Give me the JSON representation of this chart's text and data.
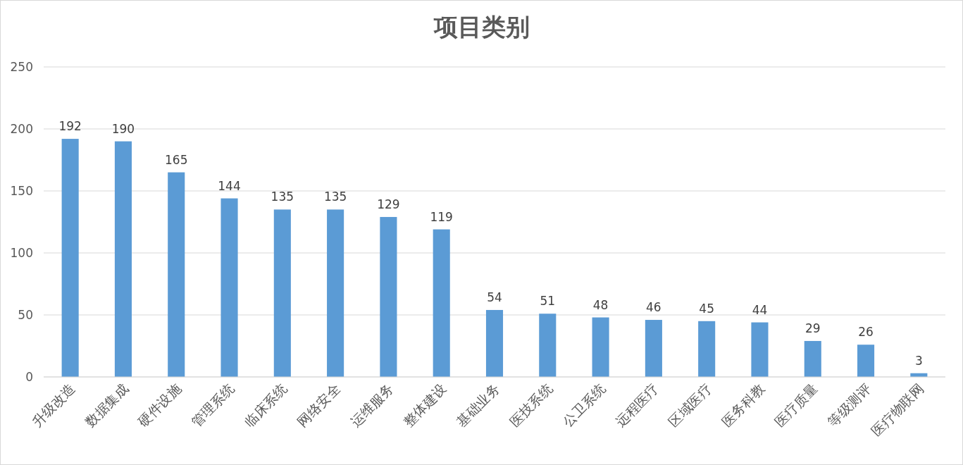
{
  "chart_data": {
    "type": "bar",
    "title": "项目类别",
    "categories": [
      "升级改造",
      "数据集成",
      "硬件设施",
      "管理系统",
      "临床系统",
      "网络安全",
      "运维服务",
      "整体建设",
      "基础业务",
      "医技系统",
      "公卫系统",
      "远程医疗",
      "区域医疗",
      "医务科教",
      "医疗质量",
      "等级测评",
      "医疗物联网"
    ],
    "values": [
      192,
      190,
      165,
      144,
      135,
      135,
      129,
      119,
      54,
      51,
      48,
      46,
      45,
      44,
      29,
      26,
      3
    ],
    "color": "#5b9bd5",
    "ylim": [
      0,
      250
    ],
    "yticks": [
      0,
      50,
      100,
      150,
      200,
      250
    ],
    "grid": "y",
    "data_labels": true
  }
}
